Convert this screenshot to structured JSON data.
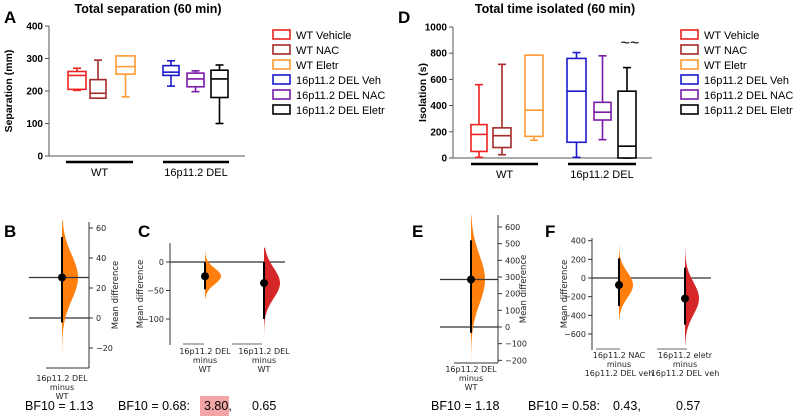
{
  "panel_letters": [
    "A",
    "B",
    "C",
    "D",
    "E",
    "F"
  ],
  "colors": {
    "wt_vehicle": "#ee2222",
    "wt_nac": "#a52a2a",
    "wt_eletr": "#ff9933",
    "del_veh": "#1a1acc",
    "del_nac": "#7a1aa8",
    "del_eletr": "#000000",
    "orange_dist": "#ff7f0e",
    "red_dist": "#d62728",
    "highlight": "#f4a6a6"
  },
  "chart_data": [
    {
      "id": "A",
      "type": "box",
      "title": "Total separation (60 min)",
      "ylabel": "Separation (mm)",
      "ylim": [
        0,
        400
      ],
      "yticks": [
        0,
        100,
        200,
        300,
        400
      ],
      "groups": [
        "WT",
        "16p11.2 DEL"
      ],
      "series": [
        {
          "name": "WT Vehicle",
          "color": "#ee2222",
          "min": 202,
          "q1": 205,
          "median": 248,
          "q3": 260,
          "max": 270
        },
        {
          "name": "WT NAC",
          "color": "#a52a2a",
          "min": 178,
          "q1": 178,
          "median": 193,
          "q3": 235,
          "max": 295
        },
        {
          "name": "WT Eletr",
          "color": "#ff9933",
          "min": 182,
          "q1": 252,
          "median": 275,
          "q3": 308,
          "max": 308
        },
        {
          "name": "16p11.2 DEL Veh",
          "color": "#1a1acc",
          "min": 215,
          "q1": 248,
          "median": 258,
          "q3": 278,
          "max": 293
        },
        {
          "name": "16p11.2 DEL NAC",
          "color": "#7a1aa8",
          "min": 198,
          "q1": 213,
          "median": 237,
          "q3": 255,
          "max": 262
        },
        {
          "name": "16p11.2 DEL Eletr",
          "color": "#000000",
          "min": 100,
          "q1": 180,
          "median": 237,
          "q3": 264,
          "max": 280
        }
      ]
    },
    {
      "id": "D",
      "type": "box",
      "title": "Total time isolated (60 min)",
      "ylabel": "Isolation (s)",
      "ylim": [
        0,
        1000
      ],
      "yticks": [
        0,
        200,
        400,
        600,
        800,
        1000
      ],
      "groups": [
        "WT",
        "16p11.2 DEL"
      ],
      "annotation": "~~",
      "series": [
        {
          "name": "WT Vehicle",
          "color": "#ee2222",
          "min": 5,
          "q1": 50,
          "median": 180,
          "q3": 255,
          "max": 560
        },
        {
          "name": "WT NAC",
          "color": "#a52a2a",
          "min": 25,
          "q1": 80,
          "median": 170,
          "q3": 230,
          "max": 715
        },
        {
          "name": "WT Eletr",
          "color": "#ff9933",
          "min": 135,
          "q1": 165,
          "median": 365,
          "q3": 785,
          "max": 785
        },
        {
          "name": "16p11.2  DEL Veh",
          "color": "#1a1acc",
          "min": 5,
          "q1": 120,
          "median": 510,
          "q3": 760,
          "max": 805
        },
        {
          "name": "16p11.2  DEL NAC",
          "color": "#7a1aa8",
          "min": 140,
          "q1": 290,
          "median": 350,
          "q3": 425,
          "max": 780
        },
        {
          "name": "16p11.2 DEL Eletr",
          "color": "#000000",
          "min": 0,
          "q1": 0,
          "median": 90,
          "q3": 510,
          "max": 690
        }
      ]
    },
    {
      "id": "B",
      "type": "estimation",
      "ylabel": "Mean difference",
      "yticks": [
        -20,
        0,
        20,
        40,
        60
      ],
      "comparisons": [
        {
          "label": [
            "16p11.2 DEL",
            "minus",
            "WT"
          ],
          "mean": 27,
          "ci": [
            -3,
            54
          ],
          "dist": [
            -26,
            65
          ],
          "color": "#ff7f0e"
        }
      ],
      "bf_text": "BF10 = 1.13"
    },
    {
      "id": "C",
      "type": "estimation",
      "ylabel": "Mean difference",
      "yticks": [
        -100,
        -50,
        0
      ],
      "comparisons": [
        {
          "label": [
            "16p11.2 DEL",
            "minus",
            "WT"
          ],
          "mean": -25,
          "ci": [
            -48,
            0
          ],
          "dist": [
            -65,
            20
          ],
          "color": "#ff7f0e"
        },
        {
          "label": [
            "16p11.2 DEL",
            "minus",
            "WT"
          ],
          "mean": -37,
          "ci": [
            -100,
            0
          ],
          "dist": [
            -135,
            25
          ],
          "color": "#d62728"
        }
      ],
      "bf_text": "BF10 = 0.68:",
      "bf_values": [
        "3.80,",
        "0.65"
      ]
    },
    {
      "id": "E",
      "type": "estimation",
      "ylabel": "Mean difference",
      "yticks": [
        -200,
        -100,
        0,
        100,
        200,
        300,
        400,
        500,
        600
      ],
      "comparisons": [
        {
          "label": [
            "16p11.2 DEL",
            "minus",
            "WT"
          ],
          "mean": 285,
          "ci": [
            -35,
            520
          ],
          "dist": [
            -210,
            670
          ],
          "color": "#ff7f0e"
        }
      ],
      "bf_text": "BF10 = 1.18"
    },
    {
      "id": "F",
      "type": "estimation",
      "ylabel": "Mean difference",
      "yticks": [
        -600,
        -400,
        -200,
        0,
        200,
        400
      ],
      "comparisons": [
        {
          "label": [
            "16p11.2 NAC",
            "minus",
            "16p11.2 DEL veh"
          ],
          "mean": -75,
          "ci": [
            -300,
            210
          ],
          "dist": [
            -440,
            380
          ],
          "color": "#ff7f0e"
        },
        {
          "label": [
            "16p11.2 eletr",
            "minus",
            "16p11.2 DEL veh"
          ],
          "mean": -220,
          "ci": [
            -500,
            110
          ],
          "dist": [
            -720,
            330
          ],
          "color": "#d62728"
        }
      ],
      "bf_text": "BF10 = 0.58:",
      "bf_values": [
        "0.43,",
        "0.57"
      ]
    }
  ]
}
